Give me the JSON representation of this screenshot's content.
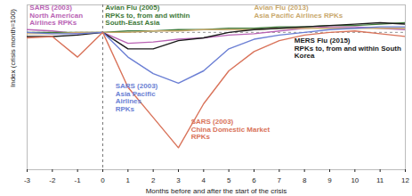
{
  "chart_data": {
    "type": "line",
    "x_label": "Months before and after the start of the crisis",
    "y_label": "Index (crisis month=100)",
    "x": [
      -3,
      -2,
      -1,
      0,
      1,
      2,
      3,
      4,
      5,
      6,
      7,
      8,
      9,
      10,
      11,
      12
    ],
    "xlim": [
      -3,
      12
    ],
    "xticks": [
      -3,
      -2,
      -1,
      0,
      1,
      2,
      3,
      4,
      5,
      6,
      7,
      8,
      9,
      10,
      11,
      12
    ],
    "ylim": [
      0,
      120
    ],
    "yticks": [
      100
    ],
    "grid": true,
    "tick_labels": "x",
    "crisis_start": 0,
    "series": [
      {
        "name": "SARS (2003)\nNorth American\nAirlines RPKs",
        "color": "#b963b4",
        "values": [
          102,
          101,
          99,
          100,
          92,
          93,
          95,
          96,
          98,
          99,
          101,
          103,
          104,
          104,
          103,
          102
        ]
      },
      {
        "name": "Avian Flu (2005)\nRPKs to, from and within\nSouth-East Asia",
        "color": "#3f7a3a",
        "values": [
          100,
          100,
          100,
          100,
          101,
          101,
          102,
          102,
          103,
          103,
          104,
          104,
          105,
          105,
          106,
          107
        ]
      },
      {
        "name": "Avian Flu (2013)\nAsia Pacific Airlines RPKs",
        "color": "#c9a96e",
        "values": [
          99,
          99,
          100,
          100,
          100,
          101,
          101,
          102,
          102,
          102,
          103,
          103,
          103,
          103,
          103,
          103
        ]
      },
      {
        "name": "MERS Flu (2015)\nRPKs to, from and within South\nKorea",
        "color": "#1a1a1a",
        "values": [
          97,
          97,
          98,
          100,
          88,
          88,
          94,
          96,
          100,
          102,
          103,
          104,
          105,
          106,
          107,
          106
        ]
      },
      {
        "name": "SARS (2003)\nAsia Pacific\nAirlines\nRPKs",
        "color": "#6b7fd4",
        "values": [
          100,
          99,
          99,
          100,
          82,
          70,
          63,
          72,
          88,
          95,
          98,
          100,
          102,
          103,
          104,
          104
        ]
      },
      {
        "name": "SARS (2003)\nChina Domestic Market\nRPKs",
        "color": "#d9735a",
        "values": [
          96,
          97,
          82,
          100,
          60,
          38,
          16,
          48,
          72,
          86,
          94,
          98,
          100,
          101,
          99,
          97
        ]
      }
    ]
  }
}
